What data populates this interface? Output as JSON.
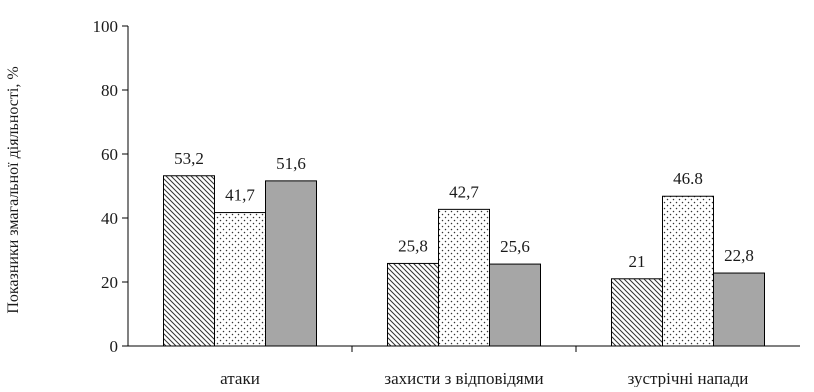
{
  "chart_data": {
    "type": "bar",
    "title": "",
    "xlabel": "",
    "ylabel": "Показники змагальної діяльності, %",
    "ylim": [
      0,
      100
    ],
    "yticks": [
      "0",
      "20",
      "40",
      "60",
      "80",
      "100"
    ],
    "grid": false,
    "legend": "none",
    "categories": [
      "атаки",
      "захисти з відповідями",
      "зустрічні напади"
    ],
    "series": [
      {
        "pattern": "diagonal-hatch",
        "values": [
          53.2,
          25.8,
          21
        ],
        "labels": [
          "53,2",
          "25,8",
          "21"
        ]
      },
      {
        "pattern": "dotted",
        "values": [
          41.7,
          42.7,
          46.8
        ],
        "labels": [
          "41,7",
          "42,7",
          "46.8"
        ]
      },
      {
        "pattern": "solid-gray",
        "color": "#a6a6a6",
        "values": [
          51.6,
          25.6,
          22.8
        ],
        "labels": [
          "51,6",
          "25,6",
          "22,8"
        ]
      }
    ]
  }
}
